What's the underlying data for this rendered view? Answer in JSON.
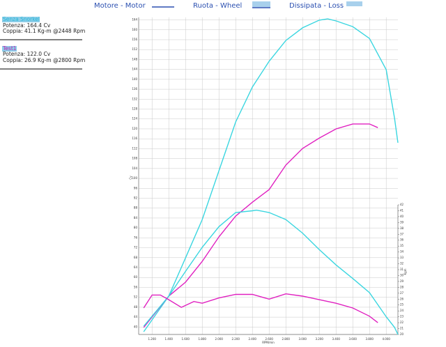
{
  "top_legend": [
    "Motore - Motor",
    "Ruota - Wheel",
    "Dissipata - Loss"
  ],
  "tests": [
    {
      "name": "Senza Snorkel",
      "lines": [
        "Potenza: 164.4 Cv",
        "Coppia: 41.1 Kg-m @2448 Rpm"
      ]
    },
    {
      "name": "Test1",
      "lines": [
        "Potenza: 122.0 Cv",
        "Coppia: 26.9 Kg-m @2800 Rpm"
      ]
    }
  ],
  "chart_data": {
    "type": "line",
    "xlabel": "RPM/min",
    "ylabel": "Cv",
    "y2label": "Kgm",
    "xlim": [
      1040,
      4140
    ],
    "xticks": [
      {
        "value": 1200,
        "label": "1.200"
      },
      {
        "value": 1400,
        "label": "1.400"
      },
      {
        "value": 1600,
        "label": "1.600"
      },
      {
        "value": 1800,
        "label": "1.800"
      },
      {
        "value": 2000,
        "label": "2.000"
      },
      {
        "value": 2200,
        "label": "2.200"
      },
      {
        "value": 2400,
        "label": "2.400"
      },
      {
        "value": 2600,
        "label": "2.600"
      },
      {
        "value": 2800,
        "label": "2.800"
      },
      {
        "value": 3000,
        "label": "3.000"
      },
      {
        "value": 3200,
        "label": "3.200"
      },
      {
        "value": 3400,
        "label": "3.400"
      },
      {
        "value": 3600,
        "label": "3.600"
      },
      {
        "value": 3800,
        "label": "3.800"
      },
      {
        "value": 4000,
        "label": "4.000"
      }
    ],
    "ylim": [
      37,
      165
    ],
    "yticks": [
      40,
      44,
      48,
      52,
      56,
      60,
      64,
      68,
      72,
      76,
      80,
      84,
      88,
      92,
      96,
      100,
      104,
      108,
      112,
      116,
      120,
      124,
      128,
      132,
      136,
      140,
      144,
      148,
      152,
      156,
      160,
      164
    ],
    "y2lim": [
      20,
      42
    ],
    "y2ticks": [
      20,
      21,
      22,
      23,
      24,
      25,
      26,
      27,
      28,
      29,
      30,
      31,
      32,
      33,
      34,
      35,
      36,
      37,
      38,
      39,
      40,
      41,
      42
    ],
    "grid": true,
    "series": [
      {
        "color": "#3ad6e0",
        "x": [
          1100,
          1400,
          1600,
          1800,
          2000,
          2200,
          2400,
          2600,
          2800,
          3000,
          3200,
          3300,
          3400,
          3600,
          3800,
          4000,
          4100,
          4140
        ],
        "values": [
          38.1,
          52.5,
          67.9,
          83.4,
          103.1,
          122.8,
          136.9,
          147.3,
          155.7,
          160.8,
          163.9,
          164.4,
          163.6,
          161.3,
          156.5,
          143.9,
          124.2,
          114.4
        ]
      },
      {
        "color": "#e020c0",
        "x": [
          1100,
          1400,
          1600,
          1800,
          2000,
          2200,
          2400,
          2600,
          2800,
          3000,
          3200,
          3400,
          3600,
          3800,
          3900
        ],
        "values": [
          39.8,
          52.5,
          58.1,
          66.5,
          76.4,
          84.8,
          90.4,
          95.5,
          105.4,
          112.1,
          116.3,
          120.0,
          122.0,
          122.0,
          120.5
        ]
      },
      {
        "color": "#3ad6e0",
        "axis": "y2",
        "x": [
          1100,
          1400,
          1600,
          1800,
          2000,
          2200,
          2400,
          2448,
          2600,
          2800,
          3000,
          3200,
          3400,
          3600,
          3800,
          4000,
          4100,
          4140
        ],
        "values": [
          21.4,
          26.5,
          30.7,
          34.8,
          38.3,
          40.7,
          41.0,
          41.1,
          40.7,
          39.5,
          37.2,
          34.4,
          31.8,
          29.5,
          27.1,
          23.0,
          21.2,
          20.0
        ]
      },
      {
        "color": "#e020c0",
        "axis": "y2",
        "x": [
          1100,
          1200,
          1300,
          1400,
          1550,
          1700,
          1800,
          2000,
          2200,
          2400,
          2600,
          2800,
          3000,
          3200,
          3400,
          3600,
          3800,
          3900
        ],
        "values": [
          24.5,
          26.7,
          26.7,
          25.9,
          24.6,
          25.6,
          25.3,
          26.2,
          26.8,
          26.8,
          26.0,
          26.9,
          26.5,
          25.9,
          25.3,
          24.5,
          23.1,
          22.0
        ]
      }
    ]
  }
}
